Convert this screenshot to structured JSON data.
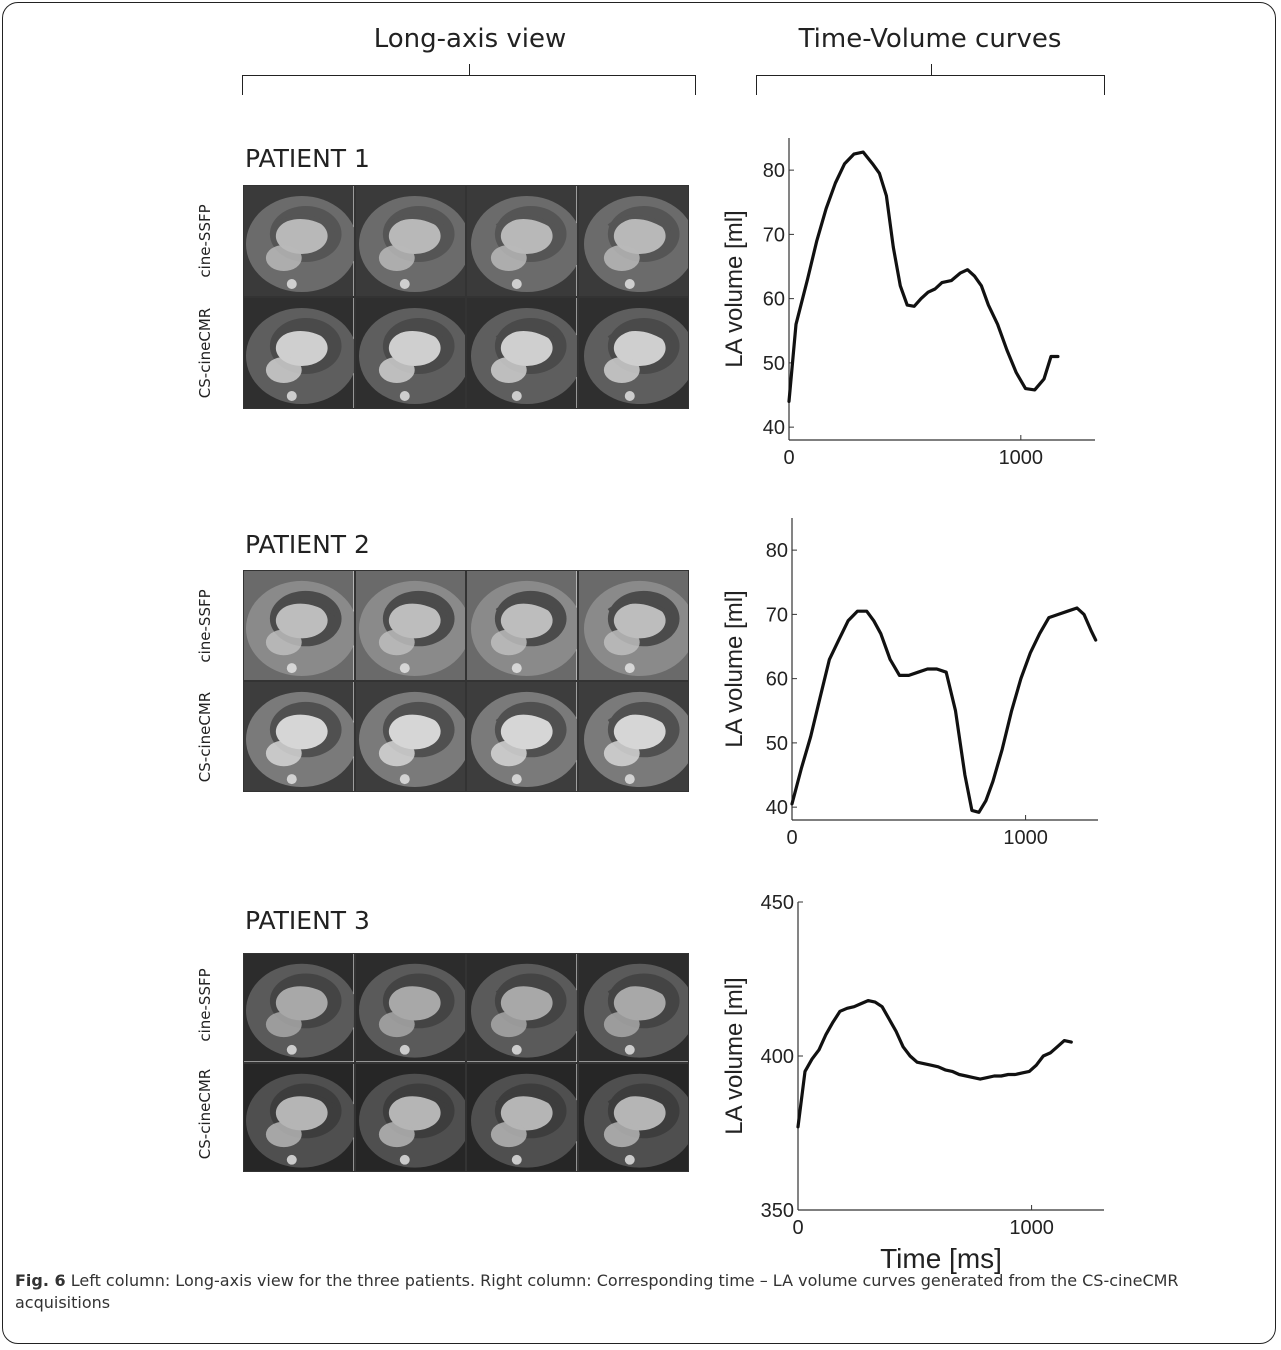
{
  "headers": {
    "left": "Long-axis view",
    "right": "Time-Volume curves"
  },
  "row_labels": {
    "top": "cine-SSFP",
    "bottom": "CS-cineCMR"
  },
  "patients": [
    {
      "title": "PATIENT 1"
    },
    {
      "title": "PATIENT 2"
    },
    {
      "title": "PATIENT 3"
    }
  ],
  "chart_data": [
    {
      "type": "line",
      "ylabel": "LA volume [ml]",
      "xlabel": "",
      "xlim": [
        0,
        1320
      ],
      "ylim": [
        38,
        85
      ],
      "xticks": [
        0,
        1000
      ],
      "yticks": [
        40,
        50,
        60,
        70,
        80
      ],
      "x": [
        0,
        30,
        80,
        120,
        160,
        200,
        240,
        280,
        320,
        360,
        390,
        420,
        450,
        480,
        510,
        540,
        570,
        600,
        630,
        660,
        700,
        740,
        770,
        800,
        830,
        860,
        900,
        940,
        980,
        1020,
        1060,
        1100,
        1130,
        1160
      ],
      "y": [
        44,
        56,
        63,
        69,
        74,
        78,
        81,
        82.5,
        82.8,
        81,
        79.5,
        76,
        68,
        62,
        59,
        58.8,
        60,
        61,
        61.5,
        62.5,
        62.8,
        64,
        64.5,
        63.5,
        62,
        59,
        56,
        52,
        48.5,
        46,
        45.8,
        47.5,
        51,
        51
      ]
    },
    {
      "type": "line",
      "ylabel": "LA volume [ml]",
      "xlabel": "",
      "xlim": [
        0,
        1310
      ],
      "ylim": [
        38,
        85
      ],
      "xticks": [
        0,
        1000
      ],
      "yticks": [
        40,
        50,
        60,
        70,
        80
      ],
      "x": [
        0,
        40,
        80,
        120,
        160,
        200,
        240,
        280,
        320,
        350,
        380,
        420,
        460,
        500,
        540,
        580,
        620,
        660,
        700,
        740,
        770,
        800,
        830,
        860,
        900,
        940,
        980,
        1020,
        1060,
        1100,
        1140,
        1180,
        1220,
        1250,
        1280,
        1300
      ],
      "y": [
        40.5,
        46,
        51,
        57,
        63,
        66,
        69,
        70.5,
        70.5,
        69,
        67,
        63,
        60.5,
        60.5,
        61,
        61.5,
        61.5,
        61,
        55,
        45,
        39.5,
        39.2,
        41,
        44,
        49,
        55,
        60,
        64,
        67,
        69.5,
        70,
        70.5,
        71,
        70,
        67.5,
        66
      ]
    },
    {
      "type": "line",
      "ylabel": "LA volume [ml]",
      "xlabel": "Time [ms]",
      "xlim": [
        0,
        1310
      ],
      "ylim": [
        350,
        450
      ],
      "xticks": [
        0,
        1000
      ],
      "yticks": [
        350,
        400,
        450
      ],
      "x": [
        0,
        30,
        60,
        90,
        120,
        150,
        180,
        210,
        240,
        270,
        300,
        330,
        360,
        390,
        420,
        450,
        480,
        510,
        540,
        570,
        600,
        630,
        660,
        690,
        720,
        750,
        780,
        810,
        840,
        870,
        900,
        930,
        960,
        990,
        1020,
        1050,
        1080,
        1110,
        1140,
        1170
      ],
      "y": [
        377,
        395,
        399,
        402,
        407,
        411,
        414.5,
        415.5,
        416,
        417,
        418,
        417.5,
        416,
        412,
        408,
        403,
        400,
        398,
        397.5,
        397,
        396.5,
        395.5,
        395,
        394,
        393.5,
        393,
        392.5,
        393,
        393.5,
        393.5,
        394,
        394,
        394.5,
        395,
        397,
        400,
        401,
        403,
        405,
        404.5
      ]
    }
  ],
  "caption": {
    "label": "Fig. 6",
    "text": " Left column: Long-axis view for the three patients. Right column: Corresponding time – LA volume curves generated from the CS-cineCMR acquisitions"
  },
  "colors": {
    "line": "#111111",
    "text": "#222222"
  }
}
